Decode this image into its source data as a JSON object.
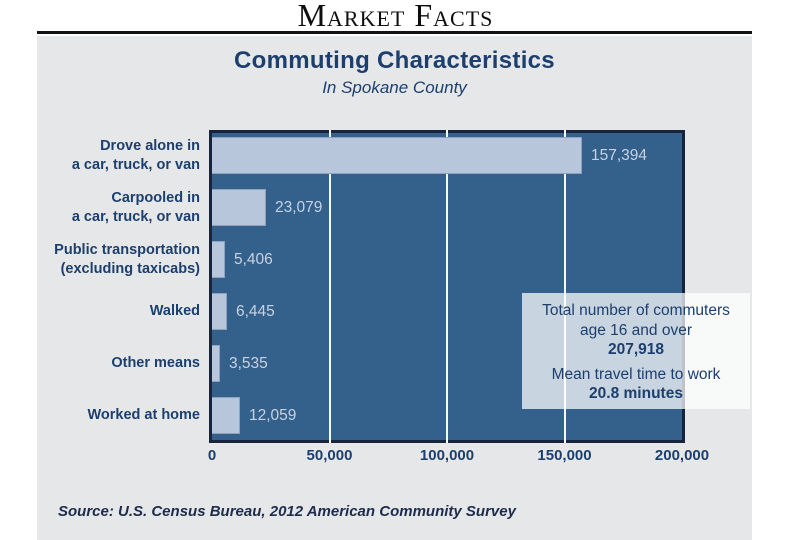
{
  "masthead": {
    "title": "Market Facts"
  },
  "panel": {
    "title": "Commuting Characteristics",
    "subtitle": "In Spokane County",
    "source": "Source: U.S. Census Bureau, 2012 American Community Survey"
  },
  "info_box": {
    "lines": [
      "Total number of commuters",
      "age 16 and over"
    ],
    "total": "207,918",
    "mean_label": "Mean travel time to work",
    "mean_value": "20.8 minutes"
  },
  "chart_data": {
    "type": "bar",
    "orientation": "horizontal",
    "title": "Commuting Characteristics",
    "subtitle": "In Spokane County",
    "categories": [
      [
        "Drove alone in",
        "a car, truck, or van"
      ],
      [
        "Carpooled in",
        "a car, truck, or van"
      ],
      [
        "Public transportation",
        "(excluding taxicabs)"
      ],
      [
        "Walked"
      ],
      [
        "Other means"
      ],
      [
        "Worked at home"
      ]
    ],
    "values": [
      157394,
      23079,
      5406,
      6445,
      3535,
      12059
    ],
    "value_labels": [
      "157,394",
      "23,079",
      "5,406",
      "6,445",
      "3,535",
      "12,059"
    ],
    "xlim": [
      0,
      200000
    ],
    "x_ticks": [
      {
        "value": 0,
        "label": "0"
      },
      {
        "value": 50000,
        "label": "50,000"
      },
      {
        "value": 100000,
        "label": "100,000"
      },
      {
        "value": 150000,
        "label": "150,000"
      },
      {
        "value": 200000,
        "label": "200,000"
      }
    ],
    "gridlines": [
      50000,
      100000,
      150000
    ],
    "grid": "vertical-white-on-dark",
    "legend": "none"
  },
  "colors": {
    "plot_background": "#34608c",
    "plot_border": "#17243b",
    "bar_fill": "#b8c6dc",
    "bar_value_text": "#c8d2e1",
    "navy_text": "#1c3f6e",
    "panel_background": "#e6e7e9",
    "gridline": "#f7f9fb",
    "info_box_background": "rgba(255,255,255,0.73)",
    "masthead_text": "#0e0e0e"
  }
}
